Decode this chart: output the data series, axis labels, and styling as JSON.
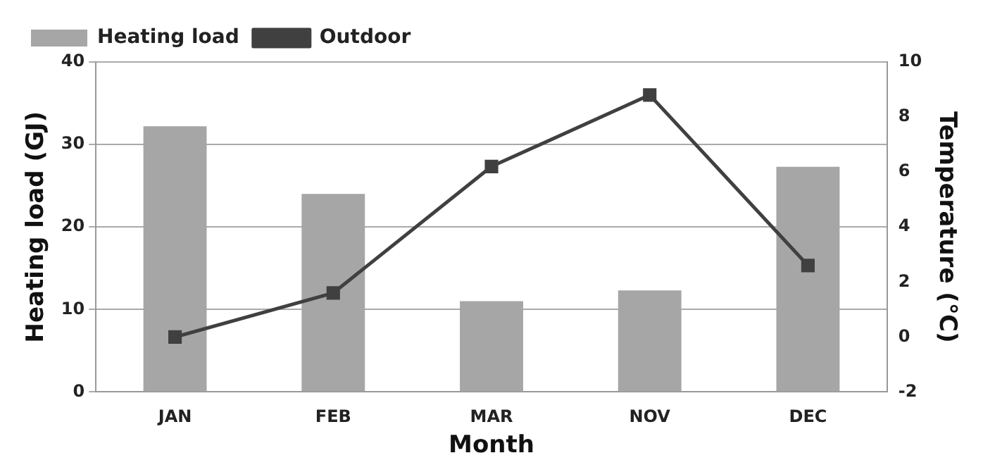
{
  "chart_data": {
    "type": "bar",
    "xlabel": "Month",
    "ylabel": "Heating load (GJ)",
    "y2label": "Temperature (℃)",
    "categories": [
      "JAN",
      "FEB",
      "MAR",
      "NOV",
      "DEC"
    ],
    "series": [
      {
        "name": "Heating load",
        "color": "#a6a6a6",
        "values": [
          32.2,
          24.0,
          11.0,
          12.3,
          27.3
        ]
      },
      {
        "name": "Outdoor",
        "type": "line",
        "axis": "y2",
        "color": "#404040",
        "marker": "square",
        "values": [
          0,
          1.6,
          6.2,
          8.8,
          2.6
        ]
      }
    ],
    "ylim": [
      0,
      40
    ],
    "yticks": [
      0,
      10,
      20,
      30,
      40
    ],
    "y2lim": [
      -2,
      10
    ],
    "y2ticks": [
      -2,
      0,
      2,
      4,
      6,
      8,
      10
    ],
    "grid": "y",
    "legend": "top left"
  }
}
